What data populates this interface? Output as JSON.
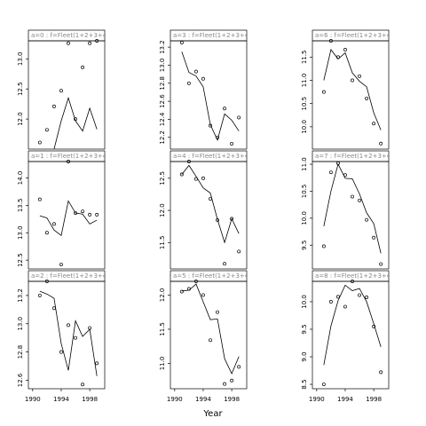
{
  "xlabel": "Year",
  "chart_data": [
    {
      "type": "scatter",
      "title": "a=0 : f=Fleet(1+2+3+4)",
      "x": [
        1991,
        1992,
        1993,
        1994,
        1995,
        1996,
        1997,
        1998,
        1999
      ],
      "xlim": [
        1989.4,
        2000.1
      ],
      "ylim": [
        11.5,
        13.3
      ],
      "yticks": [
        {
          "value": 12,
          "label": "12.0"
        },
        12.5,
        {
          "value": 13,
          "label": "13.0"
        }
      ],
      "series": [
        {
          "name": "observed",
          "mode": "points",
          "color": "#000000",
          "values": [
            11.61,
            11.82,
            12.21,
            12.47,
            13.26,
            12.0,
            12.86,
            13.26,
            13.3
          ]
        },
        {
          "name": "fitted",
          "mode": "line",
          "color": "#000000",
          "values": [
            null,
            null,
            11.5,
            11.97,
            12.35,
            11.97,
            11.8,
            12.18,
            11.83
          ]
        }
      ]
    },
    {
      "type": "scatter",
      "title": "a=1 : f=Fleet(1+2+3+4)",
      "x": [
        1991,
        1992,
        1993,
        1994,
        1995,
        1996,
        1997,
        1998,
        1999
      ],
      "xlim": [
        1989.4,
        2000.1
      ],
      "ylim": [
        12.34,
        14.3
      ],
      "yticks": [
        12.5,
        {
          "value": 13,
          "label": "13.0"
        },
        13.5,
        {
          "value": 14,
          "label": "14.0"
        }
      ],
      "series": [
        {
          "name": "observed",
          "mode": "points",
          "color": "#000000",
          "values": [
            13.61,
            13.0,
            13.16,
            12.42,
            14.3,
            13.36,
            13.39,
            13.33,
            13.33
          ]
        },
        {
          "name": "fitted",
          "mode": "line",
          "color": "#000000",
          "values": [
            13.31,
            13.27,
            13.05,
            12.95,
            13.58,
            13.36,
            13.34,
            13.16,
            13.23
          ]
        }
      ]
    },
    {
      "type": "scatter",
      "title": "a=2 : f=Fleet(1+2+3+4)",
      "x": [
        1991,
        1992,
        1993,
        1994,
        1995,
        1996,
        1997,
        1998,
        1999
      ],
      "xlim": [
        1989.4,
        2000.1
      ],
      "ylim": [
        12.54,
        13.3
      ],
      "yticks": [
        12.6,
        12.8,
        {
          "value": 13,
          "label": "13.0"
        },
        13.2
      ],
      "xticks": [
        1990,
        1994,
        1998
      ],
      "series": [
        {
          "name": "observed",
          "mode": "points",
          "color": "#000000",
          "values": [
            13.2,
            13.3,
            13.11,
            12.8,
            12.99,
            12.9,
            12.57,
            12.97,
            12.72
          ]
        },
        {
          "name": "fitted",
          "mode": "line",
          "color": "#000000",
          "values": [
            13.23,
            13.21,
            13.18,
            12.86,
            12.67,
            13.02,
            12.91,
            12.96,
            12.63
          ]
        }
      ]
    },
    {
      "type": "scatter",
      "title": "a=3 : f=Fleet(1+2+3+4)",
      "x": [
        1991,
        1992,
        1993,
        1994,
        1995,
        1996,
        1997,
        1998,
        1999
      ],
      "xlim": [
        1989.4,
        2000.1
      ],
      "ylim": [
        12.07,
        13.27
      ],
      "yticks": [
        12.2,
        12.4,
        12.6,
        12.8,
        {
          "value": 13,
          "label": "13.0"
        },
        13.2
      ],
      "series": [
        {
          "name": "observed",
          "mode": "points",
          "color": "#000000",
          "values": [
            13.25,
            12.8,
            12.93,
            12.85,
            12.33,
            12.2,
            12.52,
            12.13,
            12.42
          ]
        },
        {
          "name": "fitted",
          "mode": "line",
          "color": "#000000",
          "values": [
            13.15,
            12.92,
            12.88,
            12.76,
            12.34,
            12.17,
            12.46,
            12.39,
            12.27
          ]
        }
      ]
    },
    {
      "type": "scatter",
      "title": "a=4 : f=Fleet(1+2+3+4)",
      "x": [
        1991,
        1992,
        1993,
        1994,
        1995,
        1996,
        1997,
        1998,
        1999
      ],
      "xlim": [
        1989.4,
        2000.1
      ],
      "ylim": [
        11.09,
        12.76
      ],
      "yticks": [
        11.5,
        {
          "value": 12,
          "label": "12.0"
        },
        12.5
      ],
      "series": [
        {
          "name": "observed",
          "mode": "points",
          "color": "#000000",
          "values": [
            12.56,
            12.76,
            12.49,
            12.5,
            12.18,
            11.85,
            11.17,
            11.87,
            11.36
          ]
        },
        {
          "name": "fitted",
          "mode": "line",
          "color": "#000000",
          "values": [
            12.56,
            12.7,
            12.53,
            12.35,
            12.27,
            11.86,
            11.5,
            11.87,
            11.64
          ]
        }
      ]
    },
    {
      "type": "scatter",
      "title": "a=5 : f=Fleet(1+2+3+4)",
      "x": [
        1991,
        1992,
        1993,
        1994,
        1995,
        1996,
        1997,
        1998,
        1999
      ],
      "xlim": [
        1989.4,
        2000.1
      ],
      "ylim": [
        10.63,
        12.2
      ],
      "yticks": [
        {
          "value": 11,
          "label": "11.0"
        },
        11.5,
        {
          "value": 12,
          "label": "12.0"
        }
      ],
      "xticks": [
        1990,
        1994,
        1998
      ],
      "series": [
        {
          "name": "observed",
          "mode": "points",
          "color": "#000000",
          "values": [
            12.05,
            12.09,
            12.2,
            12.0,
            11.34,
            11.75,
            10.7,
            10.75,
            10.95
          ]
        },
        {
          "name": "fitted",
          "mode": "line",
          "color": "#000000",
          "values": [
            12.06,
            12.07,
            12.16,
            11.9,
            11.64,
            11.65,
            11.07,
            10.85,
            11.1
          ]
        }
      ]
    },
    {
      "type": "scatter",
      "title": "a=6 : f=Fleet(1+2+3+4)",
      "x": [
        1991,
        1992,
        1993,
        1994,
        1995,
        1996,
        1997,
        1998,
        1999
      ],
      "xlim": [
        1989.4,
        2000.1
      ],
      "ylim": [
        9.52,
        11.85
      ],
      "yticks": [
        {
          "value": 10,
          "label": "10.0"
        },
        10.5,
        {
          "value": 11,
          "label": "11.0"
        },
        11.5
      ],
      "series": [
        {
          "name": "observed",
          "mode": "points",
          "color": "#000000",
          "values": [
            10.75,
            11.85,
            11.5,
            11.66,
            11.0,
            11.09,
            10.61,
            10.07,
            9.64
          ]
        },
        {
          "name": "fitted",
          "mode": "line",
          "color": "#000000",
          "values": [
            11.0,
            11.66,
            11.46,
            11.59,
            11.16,
            10.98,
            10.86,
            10.3,
            9.93
          ]
        }
      ]
    },
    {
      "type": "scatter",
      "title": "a=7 : f=Fleet(1+2+3+4)",
      "x": [
        1991,
        1992,
        1993,
        1994,
        1995,
        1996,
        1997,
        1998,
        1999
      ],
      "xlim": [
        1989.4,
        2000.1
      ],
      "ylim": [
        9.06,
        11.05
      ],
      "yticks": [
        9.5,
        {
          "value": 10,
          "label": "10.0"
        },
        10.5,
        {
          "value": 11,
          "label": "11.0"
        }
      ],
      "series": [
        {
          "name": "observed",
          "mode": "points",
          "color": "#000000",
          "values": [
            9.48,
            10.85,
            11.02,
            10.8,
            10.4,
            10.33,
            9.97,
            9.64,
            9.15
          ]
        },
        {
          "name": "fitted",
          "mode": "line",
          "color": "#000000",
          "values": [
            9.85,
            10.5,
            11.0,
            10.74,
            10.73,
            10.45,
            10.1,
            9.9,
            9.35
          ]
        }
      ]
    },
    {
      "type": "scatter",
      "title": "a=8 : f=Fleet(1+2+3+4)",
      "x": [
        1991,
        1992,
        1993,
        1994,
        1995,
        1996,
        1997,
        1998,
        1999
      ],
      "xlim": [
        1989.4,
        2000.1
      ],
      "ylim": [
        8.42,
        10.37
      ],
      "yticks": [
        8.5,
        {
          "value": 9,
          "label": "9.0"
        },
        9.5,
        {
          "value": 10,
          "label": "10.0"
        }
      ],
      "xticks": [
        1990,
        1994,
        1998
      ],
      "series": [
        {
          "name": "observed",
          "mode": "points",
          "color": "#000000",
          "values": [
            8.5,
            10.0,
            10.09,
            9.91,
            10.37,
            10.12,
            10.08,
            9.55,
            8.72
          ]
        },
        {
          "name": "fitted",
          "mode": "line",
          "color": "#000000",
          "values": [
            8.85,
            9.56,
            10.02,
            10.3,
            10.2,
            10.24,
            10.0,
            9.6,
            9.18
          ]
        }
      ]
    }
  ]
}
